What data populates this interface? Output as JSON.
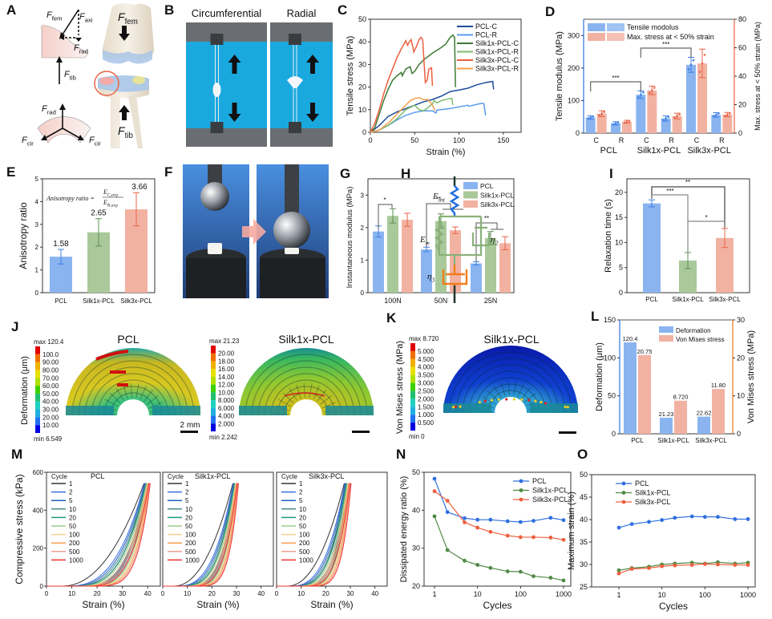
{
  "panel_labels": [
    "A",
    "B",
    "C",
    "D",
    "E",
    "F",
    "G",
    "H",
    "I",
    "J",
    "K",
    "L",
    "M",
    "N",
    "O"
  ],
  "colors": {
    "pcl": "#8ab4f0",
    "silk1x": "#a9c99a",
    "silk3x": "#f2b2a2",
    "pcl_dark": "#3d7fe6",
    "silk1x_dark": "#5e8f52",
    "silk3x_dark": "#e8654a",
    "blue_axis": "#3d7fe6",
    "orange_axis": "#f07f2a"
  },
  "panel_A": {
    "labels": [
      {
        "main": "F",
        "sub": "fem"
      },
      {
        "main": "F",
        "sub": "axi"
      },
      {
        "main": "F",
        "sub": "rad"
      },
      {
        "main": "F",
        "sub": "tib"
      },
      {
        "main": "F",
        "sub": "rad"
      },
      {
        "main": "F",
        "sub": "cir"
      },
      {
        "main": "F",
        "sub": "cir"
      },
      {
        "main": "F",
        "sub": "fem"
      },
      {
        "main": "F",
        "sub": "tib"
      }
    ]
  },
  "panel_B": {
    "titles": [
      "Circumferential",
      "Radial"
    ]
  },
  "panel_H": {
    "labels": [
      {
        "main": "E",
        "sub": "int"
      },
      {
        "main": "E",
        "sub": "∞"
      },
      {
        "main": "η",
        "sub": "2"
      },
      {
        "main": "η",
        "sub": "3"
      }
    ]
  },
  "panel_J": {
    "ylabel": "Deformation (μm)",
    "scale_bar": "2 mm",
    "maps": [
      {
        "title": "PCL",
        "max": "max 120.4",
        "min": "min 6.549",
        "ticks": [
          "100.0",
          "90.00",
          "80.00",
          "70.00",
          "60.00",
          "50.00",
          "40.00",
          "30.00",
          "20.00",
          "10.00"
        ]
      },
      {
        "title": "Silk1x-PCL",
        "max": "max 21.23",
        "min": "min 2.242",
        "ticks": [
          "20.00",
          "18.00",
          "16.00",
          "14.00",
          "12.00",
          "10.00",
          "8.000",
          "6.000",
          "4.000",
          "2.000"
        ]
      }
    ]
  },
  "panel_K": {
    "ylabel": "Von Mises stress (MPa)",
    "map": {
      "title": "Silk1x-PCL",
      "max": "max 8.720",
      "min": "min 0",
      "ticks": [
        "5.000",
        "4.500",
        "4.000",
        "3.500",
        "3.000",
        "2.500",
        "2.000",
        "1.500",
        "1.000",
        "0.500"
      ]
    }
  },
  "chart_data": [
    {
      "panel": "C",
      "type": "line",
      "xlabel": "Strain (%)",
      "ylabel": "Tensile stress (MPa)",
      "xlim": [
        0,
        170
      ],
      "ylim": [
        0,
        50
      ],
      "xticks": [
        0,
        50,
        100,
        150
      ],
      "yticks": [
        0,
        10,
        20,
        30,
        40,
        50
      ],
      "legend": "top-right",
      "series": [
        {
          "name": "PCL-C",
          "color": "#1f4e9c",
          "points": [
            [
              0,
              0
            ],
            [
              10,
              3
            ],
            [
              20,
              7
            ],
            [
              30,
              9
            ],
            [
              40,
              10.5
            ],
            [
              50,
              12
            ],
            [
              60,
              13.5
            ],
            [
              70,
              14.5
            ],
            [
              80,
              16
            ],
            [
              90,
              18
            ],
            [
              100,
              18.7
            ],
            [
              110,
              19.5
            ],
            [
              120,
              21
            ],
            [
              130,
              22
            ],
            [
              138,
              22.5
            ],
            [
              139,
              19
            ]
          ]
        },
        {
          "name": "PCL-R",
          "color": "#5b9bef",
          "points": [
            [
              0,
              0
            ],
            [
              10,
              1
            ],
            [
              20,
              3
            ],
            [
              30,
              5.5
            ],
            [
              40,
              7.5
            ],
            [
              50,
              8.8
            ],
            [
              60,
              9.5
            ],
            [
              70,
              9.5
            ],
            [
              74,
              8.5
            ],
            [
              75,
              9.8
            ],
            [
              90,
              10.5
            ],
            [
              110,
              12
            ],
            [
              111,
              11.5
            ],
            [
              125,
              12.8
            ],
            [
              128,
              12.7
            ],
            [
              130,
              7.5
            ]
          ]
        },
        {
          "name": "Silk1x-PCL-C",
          "color": "#3d7a34",
          "points": [
            [
              0,
              0
            ],
            [
              5,
              2
            ],
            [
              10,
              8
            ],
            [
              15,
              14
            ],
            [
              20,
              19
            ],
            [
              25,
              23
            ],
            [
              30,
              25
            ],
            [
              35,
              26.5
            ],
            [
              36,
              25
            ],
            [
              40,
              28
            ],
            [
              45,
              29
            ],
            [
              47,
              26
            ],
            [
              50,
              27
            ],
            [
              55,
              30
            ],
            [
              60,
              32
            ],
            [
              70,
              35
            ],
            [
              80,
              37.5
            ],
            [
              85,
              39
            ],
            [
              90,
              42
            ],
            [
              93,
              43
            ],
            [
              95,
              42
            ],
            [
              96,
              20
            ]
          ]
        },
        {
          "name": "Silk1x-PCL-R",
          "color": "#7cbb6b",
          "points": [
            [
              0,
              0
            ],
            [
              10,
              1
            ],
            [
              20,
              3
            ],
            [
              30,
              6
            ],
            [
              40,
              10
            ],
            [
              50,
              12
            ],
            [
              55,
              10
            ],
            [
              60,
              9.5
            ],
            [
              65,
              11
            ],
            [
              70,
              12.5
            ],
            [
              72,
              14
            ],
            [
              75,
              13
            ],
            [
              80,
              14
            ],
            [
              90,
              15
            ],
            [
              92,
              15
            ],
            [
              93,
              12
            ]
          ]
        },
        {
          "name": "Silk3x-PCL-C",
          "color": "#ec5f3f",
          "points": [
            [
              0,
              0
            ],
            [
              5,
              4
            ],
            [
              10,
              10
            ],
            [
              15,
              17
            ],
            [
              20,
              23
            ],
            [
              25,
              28
            ],
            [
              30,
              33
            ],
            [
              35,
              37
            ],
            [
              40,
              40.5
            ],
            [
              42,
              38.5
            ],
            [
              44,
              40
            ],
            [
              46,
              41
            ],
            [
              48,
              37.5
            ],
            [
              49,
              35.5
            ],
            [
              52,
              38
            ],
            [
              55,
              41
            ],
            [
              57,
              42
            ],
            [
              59,
              41
            ],
            [
              62,
              22
            ],
            [
              64,
              23
            ],
            [
              66,
              28
            ],
            [
              69,
              28.5
            ],
            [
              70,
              20.5
            ]
          ]
        },
        {
          "name": "Silk3x-PCL-R",
          "color": "#f5a04a",
          "points": [
            [
              0,
              0
            ],
            [
              10,
              1
            ],
            [
              20,
              4
            ],
            [
              30,
              8
            ],
            [
              40,
              12
            ],
            [
              45,
              14
            ],
            [
              50,
              15
            ],
            [
              55,
              15.3
            ],
            [
              60,
              14.5
            ],
            [
              65,
              14.5
            ],
            [
              70,
              12
            ],
            [
              73,
              9.5
            ]
          ]
        }
      ]
    },
    {
      "panel": "D",
      "type": "bar",
      "ylabel": "Tensile modulus (MPa)",
      "y2label": "Max. stress at < 50% strain (MPa)",
      "categories": [
        "C",
        "R",
        "C",
        "R",
        "C",
        "R"
      ],
      "groups": [
        "PCL",
        "Silk1x-PCL",
        "Silk3x-PCL"
      ],
      "ylim": [
        0,
        350
      ],
      "yticks": [
        0,
        100,
        200,
        300
      ],
      "y2lim": [
        0,
        80
      ],
      "y2ticks": [
        0,
        20,
        40,
        60,
        80
      ],
      "legend": "top-left",
      "series": [
        {
          "name": "Tensile modolus",
          "axis": "left",
          "color": "#8ab4f0",
          "values": [
            48,
            30,
            118,
            45,
            210,
            56
          ],
          "errors": [
            5,
            5,
            12,
            8,
            23,
            7
          ]
        },
        {
          "name": "Max. stress at < 50% strain",
          "axis": "right",
          "color": "#f2b2a2",
          "values": [
            13.7,
            8,
            30,
            12,
            49,
            13
          ],
          "errors": [
            2,
            1,
            3,
            2,
            10,
            1.5
          ]
        }
      ],
      "significance": [
        {
          "from": 0,
          "to": 2,
          "label": "***"
        },
        {
          "from": 2,
          "to": 4,
          "label": "***"
        }
      ]
    },
    {
      "panel": "E",
      "type": "bar",
      "ylabel": "Anisotropy ratio",
      "formula": {
        "lhs": "Anisotropy ratio =",
        "num": "E",
        "num_sub": "C,avg",
        "den": "E",
        "den_sub": "R,avg"
      },
      "categories": [
        "PCL",
        "Silk1x-PCL",
        "Silk3x-PCL"
      ],
      "values": [
        1.58,
        2.65,
        3.66
      ],
      "value_labels": [
        "1.58",
        "2.65",
        "3.66"
      ],
      "errors": [
        0.32,
        0.6,
        0.73
      ],
      "ylim": [
        0,
        5
      ],
      "yticks": [
        0,
        1,
        2,
        3,
        4,
        5
      ]
    },
    {
      "panel": "G",
      "type": "bar",
      "ylabel": "Instantaneous modulus (MPa)",
      "categories": [
        "100N",
        "50N",
        "25N"
      ],
      "ylim": [
        0,
        3.5
      ],
      "yticks": [
        0,
        1,
        2,
        3
      ],
      "legend": "top-right",
      "series": [
        {
          "name": "PCL",
          "values": [
            1.88,
            1.33,
            0.9
          ],
          "errors": [
            0.17,
            0.07,
            0.05
          ]
        },
        {
          "name": "Silk1x-PCL",
          "values": [
            2.36,
            2.2,
            1.68
          ],
          "errors": [
            0.22,
            0.22,
            0.2
          ]
        },
        {
          "name": "Silk3x-PCL",
          "values": [
            2.24,
            1.92,
            1.52
          ],
          "errors": [
            0.2,
            0.1,
            0.2
          ]
        }
      ],
      "significance": [
        {
          "category": 0,
          "label": "*"
        },
        {
          "category": 1,
          "label": "**"
        },
        {
          "category": 2,
          "label": "**"
        }
      ]
    },
    {
      "panel": "I",
      "type": "bar",
      "ylabel": "Relaxation time (s)",
      "categories": [
        "PCL",
        "Silk1x-PCL",
        "Silk3x-PCL"
      ],
      "values": [
        17.8,
        6.4,
        10.9
      ],
      "errors": [
        0.7,
        1.6,
        1.9
      ],
      "ylim": [
        0,
        22.7
      ],
      "yticks": [
        0,
        5,
        10,
        15,
        20
      ],
      "significance": [
        {
          "from": 0,
          "to": 2,
          "label": "**"
        },
        {
          "from": 0,
          "to": 1,
          "label": "***"
        },
        {
          "from": 1,
          "to": 2,
          "label": "*"
        }
      ]
    },
    {
      "panel": "L",
      "type": "bar",
      "ylabel": "Deformation (μm)",
      "y2label": "Von Mises stress (MPa)",
      "categories": [
        "PCL",
        "Silk1x-PCL",
        "Silk3x-PCL"
      ],
      "ylim": [
        0,
        150
      ],
      "yticks": [
        0,
        50,
        100,
        150
      ],
      "y2lim": [
        0,
        30
      ],
      "y2ticks": [
        0,
        10,
        20,
        30
      ],
      "legend": "top-right",
      "series": [
        {
          "name": "Deformation",
          "axis": "left",
          "color": "#8ab4f0",
          "values": [
            120.4,
            21.23,
            22.62
          ],
          "labels": [
            "120.4",
            "21.23",
            "22.62"
          ]
        },
        {
          "name": "Von Mises stress",
          "axis": "right",
          "color": "#f2b2a2",
          "values": [
            20.75,
            8.72,
            11.8
          ],
          "labels": [
            "20.75",
            "8.720",
            "11.80"
          ]
        }
      ]
    },
    {
      "panel": "M",
      "type": "line",
      "xlabel": "Strain (%)",
      "ylabel": "Compressive stress (kPa)",
      "legend_title": "Cycle",
      "xlim": [
        0,
        45
      ],
      "ylim": [
        0,
        600
      ],
      "xticks": [
        0,
        10,
        20,
        30,
        40
      ],
      "yticks": [
        0,
        200,
        400,
        600
      ],
      "cycles": [
        "1",
        "2",
        "5",
        "10",
        "20",
        "50",
        "100",
        "200",
        "500",
        "1000"
      ],
      "cycle_colors": [
        "#333333",
        "#3b6fe0",
        "#1f5fc0",
        "#4a8a8a",
        "#1a9a80",
        "#9acd8a",
        "#f5d090",
        "#f5a050",
        "#f0a090",
        "#f03030"
      ],
      "peak_stress": 540,
      "subplots": [
        {
          "title": "PCL",
          "peak_strain_first": 38.5,
          "peak_strain_last": 40.5
        },
        {
          "title": "Silk1x-PCL",
          "peak_strain_first": 28.5,
          "peak_strain_last": 30.3
        },
        {
          "title": "Silk3x-PCL",
          "peak_strain_first": 27.5,
          "peak_strain_last": 29.8
        }
      ]
    },
    {
      "panel": "N",
      "type": "line",
      "xscale": "log",
      "xlabel": "Cycles",
      "ylabel": "Dissipated energy ratio (%)",
      "x": [
        1,
        2,
        5,
        10,
        20,
        50,
        100,
        200,
        500,
        1000
      ],
      "xticks": [
        1,
        10,
        100,
        1000
      ],
      "ylim": [
        20,
        50
      ],
      "yticks": [
        20,
        30,
        40,
        50
      ],
      "legend": "top-right",
      "series": [
        {
          "name": "PCL",
          "color": "#2f6fe0",
          "values": [
            48.3,
            39.5,
            37.9,
            37.5,
            37.5,
            37.1,
            36.9,
            37.2,
            38.0,
            37.4
          ]
        },
        {
          "name": "Silk1x-PCL",
          "color": "#4f8a45",
          "values": [
            38.4,
            29.5,
            26.7,
            25.6,
            24.8,
            23.9,
            23.8,
            22.6,
            22.2,
            21.5
          ]
        },
        {
          "name": "Silk3x-PCL",
          "color": "#ee5f3f",
          "values": [
            45.0,
            42.5,
            36.8,
            35.4,
            34.3,
            33.3,
            32.9,
            32.9,
            32.8,
            32.2
          ]
        }
      ]
    },
    {
      "panel": "O",
      "type": "line",
      "xscale": "log",
      "xlabel": "Cycles",
      "ylabel": "Maximum strain (%)",
      "x": [
        1,
        2,
        5,
        10,
        20,
        50,
        100,
        200,
        500,
        1000
      ],
      "xticks": [
        1,
        10,
        100,
        1000
      ],
      "ylim": [
        25,
        50
      ],
      "yticks": [
        25,
        30,
        35,
        40,
        45,
        50
      ],
      "legend": "top-left",
      "series": [
        {
          "name": "PCL",
          "color": "#2f6fe0",
          "values": [
            38.2,
            39.0,
            39.5,
            39.9,
            40.4,
            40.7,
            40.6,
            40.6,
            40.1,
            40.1
          ]
        },
        {
          "name": "Silk1x-PCL",
          "color": "#4f8a45",
          "values": [
            28.7,
            29.2,
            29.5,
            30.0,
            30.2,
            30.4,
            30.2,
            30.5,
            30.2,
            30.4
          ]
        },
        {
          "name": "Silk3x-PCL",
          "color": "#ee5f3f",
          "values": [
            28.0,
            29.0,
            29.2,
            29.6,
            29.8,
            29.9,
            30.1,
            30.0,
            29.9,
            29.9
          ]
        }
      ]
    }
  ]
}
